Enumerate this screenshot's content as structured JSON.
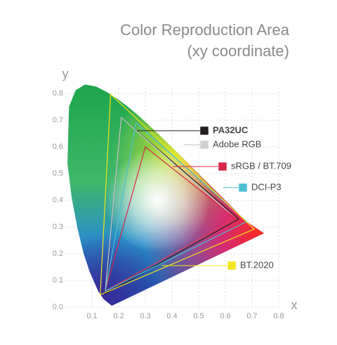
{
  "chart_data": {
    "type": "line",
    "title": "Color Reproduction Area",
    "subtitle": "(xy coordinate)",
    "x_label": "x",
    "y_label": "y",
    "xlim": [
      0,
      0.8
    ],
    "ylim": [
      0,
      0.8
    ],
    "xticks": [
      0.1,
      0.2,
      0.3,
      0.4,
      0.5,
      0.6,
      0.7,
      0.8
    ],
    "yticks": [
      {
        "value": 0,
        "label": "0.0"
      },
      0.1,
      0.2,
      0.3,
      0.4,
      0.5,
      0.6,
      0.7,
      0.8
    ],
    "grid": true,
    "series": [
      {
        "name": "PA32UC",
        "color": "#231f20",
        "x": [
          0.65,
          0.21,
          0.15
        ],
        "values": [
          0.33,
          0.71,
          0.05
        ]
      },
      {
        "name": "Adobe RGB",
        "color": "#d0d0d0",
        "x": [
          0.64,
          0.21,
          0.15
        ],
        "values": [
          0.33,
          0.71,
          0.06
        ]
      },
      {
        "name": "sRGB / BT.709",
        "color": "#d7264a",
        "x": [
          0.64,
          0.3,
          0.15
        ],
        "values": [
          0.33,
          0.6,
          0.06
        ]
      },
      {
        "name": "DCI-P3",
        "color": "#4bbfd0",
        "x": [
          0.68,
          0.265,
          0.15
        ],
        "values": [
          0.32,
          0.69,
          0.06
        ]
      },
      {
        "name": "BT.2020",
        "color": "#f4e41c",
        "x": [
          0.708,
          0.17,
          0.131
        ],
        "values": [
          0.292,
          0.797,
          0.046
        ]
      }
    ]
  }
}
